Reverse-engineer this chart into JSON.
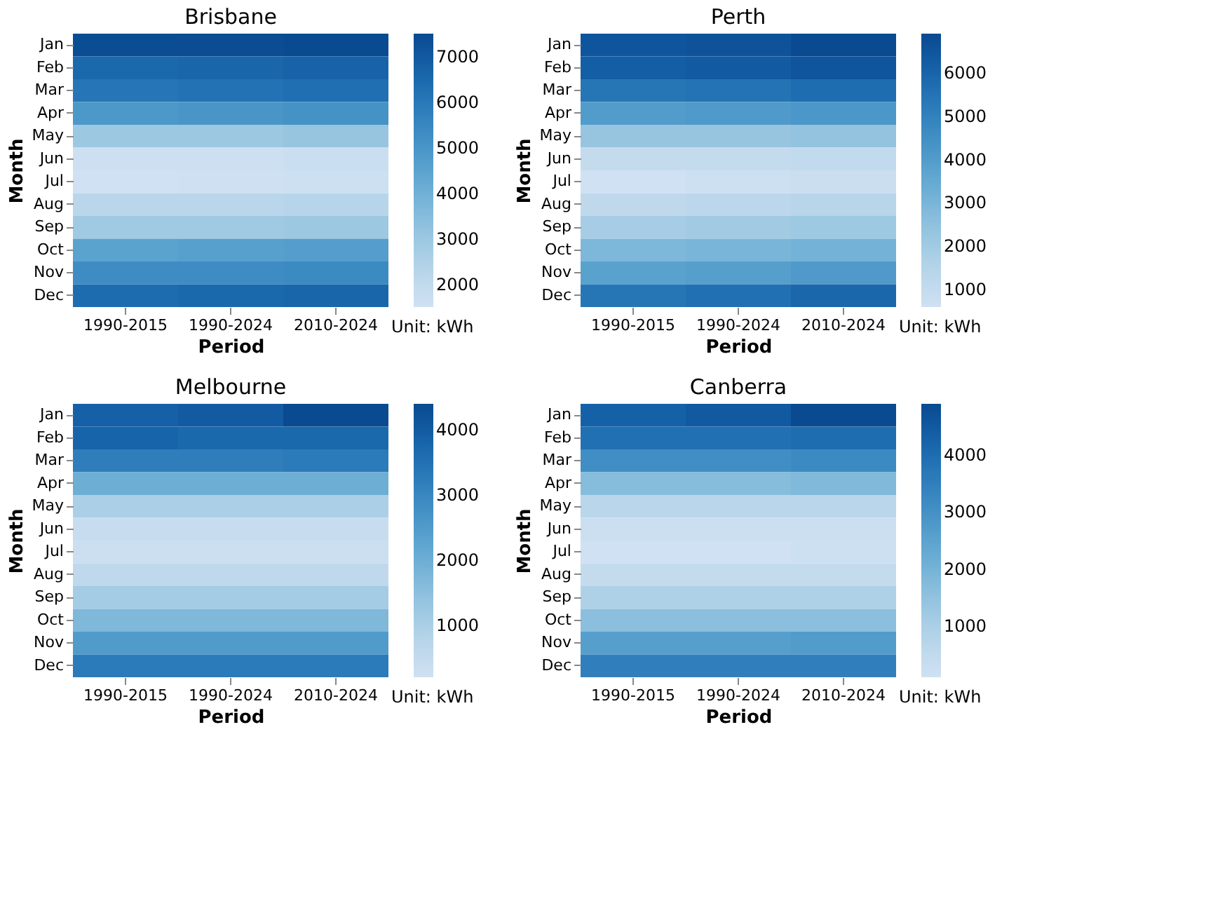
{
  "chart_data": [
    {
      "type": "heatmap",
      "title": "Brisbane",
      "xlabel": "Period",
      "ylabel": "Month",
      "annotations": [
        "Unit: kWh"
      ],
      "categories": [
        "1990-2015",
        "1990-2024",
        "2010-2024"
      ],
      "y_categories": [
        "Jan",
        "Feb",
        "Mar",
        "Apr",
        "May",
        "Jun",
        "Jul",
        "Aug",
        "Sep",
        "Oct",
        "Nov",
        "Dec"
      ],
      "cells": [
        [
          7400,
          7450,
          7500
        ],
        [
          6500,
          6600,
          6700
        ],
        [
          6100,
          6200,
          6300
        ],
        [
          4900,
          5000,
          5100
        ],
        [
          3000,
          3000,
          3100
        ],
        [
          1600,
          1600,
          1700
        ],
        [
          1500,
          1550,
          1600
        ],
        [
          2200,
          2200,
          2300
        ],
        [
          2900,
          2900,
          3000
        ],
        [
          4500,
          4600,
          4700
        ],
        [
          5300,
          5300,
          5400
        ],
        [
          6400,
          6500,
          6600
        ]
      ],
      "clim": [
        1500,
        7500
      ],
      "cticks": [
        2000,
        3000,
        4000,
        5000,
        6000,
        7000
      ]
    },
    {
      "type": "heatmap",
      "title": "Perth",
      "xlabel": "Period",
      "ylabel": "Month",
      "annotations": [
        "Unit: kWh"
      ],
      "categories": [
        "1990-2015",
        "1990-2024",
        "2010-2024"
      ],
      "y_categories": [
        "Jan",
        "Feb",
        "Mar",
        "Apr",
        "May",
        "Jun",
        "Jul",
        "Aug",
        "Sep",
        "Oct",
        "Nov",
        "Dec"
      ],
      "cells": [
        [
          6500,
          6600,
          6900
        ],
        [
          6200,
          6300,
          6500
        ],
        [
          5400,
          5500,
          5700
        ],
        [
          4000,
          4100,
          4200
        ],
        [
          2300,
          2300,
          2400
        ],
        [
          1000,
          1000,
          1100
        ],
        [
          600,
          700,
          800
        ],
        [
          1200,
          1300,
          1400
        ],
        [
          1900,
          2000,
          2100
        ],
        [
          2900,
          3000,
          3100
        ],
        [
          3800,
          3900,
          4100
        ],
        [
          5400,
          5600,
          5900
        ]
      ],
      "clim": [
        600,
        6900
      ],
      "cticks": [
        1000,
        2000,
        3000,
        4000,
        5000,
        6000
      ]
    },
    {
      "type": "heatmap",
      "title": "Melbourne",
      "xlabel": "Period",
      "ylabel": "Month",
      "annotations": [
        "Unit: kWh"
      ],
      "categories": [
        "1990-2015",
        "1990-2024",
        "2010-2024"
      ],
      "y_categories": [
        "Jan",
        "Feb",
        "Mar",
        "Apr",
        "May",
        "Jun",
        "Jul",
        "Aug",
        "Sep",
        "Oct",
        "Nov",
        "Dec"
      ],
      "cells": [
        [
          3900,
          4000,
          4400
        ],
        [
          3800,
          3700,
          3700
        ],
        [
          3200,
          3200,
          3300
        ],
        [
          2000,
          2000,
          2000
        ],
        [
          1000,
          1000,
          1000
        ],
        [
          400,
          400,
          400
        ],
        [
          300,
          300,
          300
        ],
        [
          600,
          600,
          600
        ],
        [
          1100,
          1100,
          1100
        ],
        [
          1700,
          1700,
          1700
        ],
        [
          2500,
          2500,
          2500
        ],
        [
          3300,
          3300,
          3300
        ]
      ],
      "clim": [
        200,
        4400
      ],
      "cticks": [
        1000,
        2000,
        3000,
        4000
      ]
    },
    {
      "type": "heatmap",
      "title": "Canberra",
      "xlabel": "Period",
      "ylabel": "Month",
      "annotations": [
        "Unit: kWh"
      ],
      "categories": [
        "1990-2015",
        "1990-2024",
        "2010-2024"
      ],
      "y_categories": [
        "Jan",
        "Feb",
        "Mar",
        "Apr",
        "May",
        "Jun",
        "Jul",
        "Aug",
        "Sep",
        "Oct",
        "Nov",
        "Dec"
      ],
      "cells": [
        [
          4300,
          4500,
          4900
        ],
        [
          3900,
          3900,
          4000
        ],
        [
          3100,
          3100,
          3200
        ],
        [
          1700,
          1700,
          1800
        ],
        [
          700,
          700,
          700
        ],
        [
          200,
          200,
          200
        ],
        [
          100,
          100,
          150
        ],
        [
          400,
          400,
          400
        ],
        [
          900,
          900,
          900
        ],
        [
          1600,
          1600,
          1600
        ],
        [
          2600,
          2600,
          2700
        ],
        [
          3500,
          3500,
          3500
        ]
      ],
      "clim": [
        100,
        4900
      ],
      "cticks": [
        1000,
        2000,
        3000,
        4000
      ]
    }
  ]
}
